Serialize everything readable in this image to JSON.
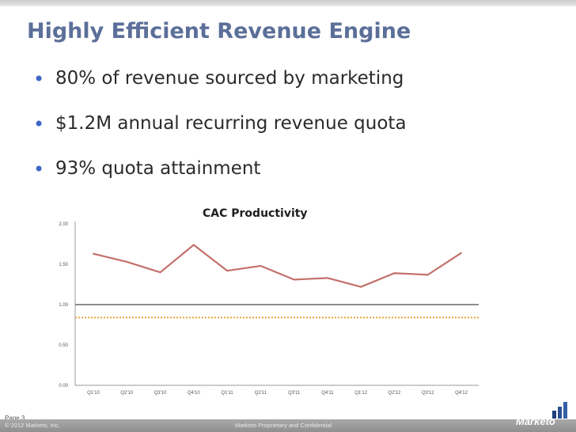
{
  "slide": {
    "title": "Highly Efficient Revenue Engine",
    "bullets": [
      "80% of revenue sourced by marketing",
      "$1.2M annual recurring revenue quota",
      "93% quota attainment"
    ]
  },
  "footer": {
    "page": "Page 3",
    "copyright": "© 2012 Marketo, Inc.",
    "confidential": "Marketo Proprietary and Confidential",
    "logo_text": "Marketo"
  },
  "colors": {
    "title": "#5b6f99",
    "bullet": "#3c67c7",
    "series": "#c4706b",
    "reference": "#8c8c8c",
    "target": "#e8a23a"
  },
  "chart_data": {
    "type": "line",
    "title": "CAC Productivity",
    "categories": [
      "Q1'10",
      "Q2'10",
      "Q3'10",
      "Q4'10",
      "Q1'11",
      "Q2'11",
      "Q3'11",
      "Q4'11",
      "Q1'12",
      "Q2'12",
      "Q3'12",
      "Q4'12"
    ],
    "series": [
      {
        "values": [
          1.63,
          1.53,
          1.4,
          1.74,
          1.42,
          1.48,
          1.31,
          1.33,
          1.22,
          1.39,
          1.37,
          1.64
        ]
      }
    ],
    "reference_lines": [
      {
        "value": 1.0,
        "style": "solid"
      },
      {
        "value": 0.84,
        "style": "dotted"
      }
    ],
    "yticks": [
      "0.00",
      "0.50",
      "1.00",
      "1.50",
      "2.00"
    ],
    "ylim": [
      0,
      2
    ],
    "grid": false,
    "xlabel": "",
    "ylabel": ""
  }
}
